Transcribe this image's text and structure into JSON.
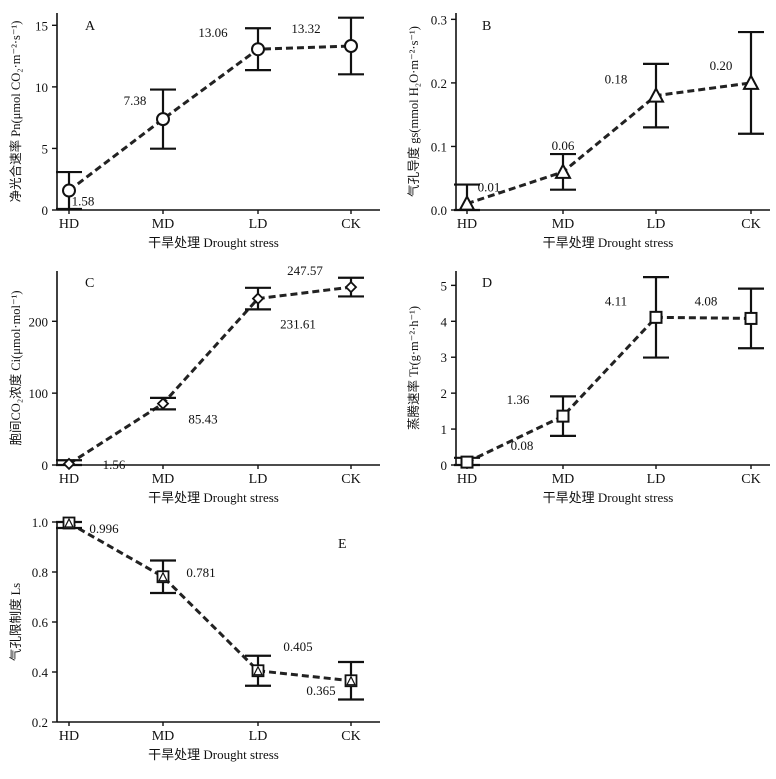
{
  "figure": {
    "xlabel": "干旱处理 Drought stress",
    "categories": [
      "HD",
      "MD",
      "LD",
      "CK"
    ]
  },
  "chart_data": [
    {
      "id": "A",
      "type": "line",
      "panel_label": "A",
      "ylabel": "净光合速率 Pn(μmol CO₂·m⁻²·s⁻¹)",
      "ylim": [
        0,
        16
      ],
      "yticks": [
        0,
        5,
        10,
        15
      ],
      "marker": "circle",
      "categories": [
        "HD",
        "MD",
        "LD",
        "CK"
      ],
      "values": [
        1.58,
        7.38,
        13.06,
        13.32
      ],
      "errors": [
        1.5,
        2.4,
        1.7,
        2.3
      ],
      "data_labels": [
        "1.58",
        "7.38",
        "13.06",
        "13.32"
      ]
    },
    {
      "id": "B",
      "type": "line",
      "panel_label": "B",
      "ylabel": "气孔导度 gs(mmol H₂O·m⁻²·s⁻¹)",
      "ylim": [
        0,
        0.31
      ],
      "yticks": [
        0.0,
        0.1,
        0.2,
        0.3
      ],
      "marker": "triangle",
      "categories": [
        "HD",
        "MD",
        "LD",
        "CK"
      ],
      "values": [
        0.01,
        0.06,
        0.18,
        0.2
      ],
      "errors": [
        0.03,
        0.028,
        0.05,
        0.08
      ],
      "data_labels": [
        "0.01",
        "0.06",
        "0.18",
        "0.20"
      ]
    },
    {
      "id": "C",
      "type": "line",
      "panel_label": "C",
      "ylabel": "胞间CO₂浓度 Ci(μmol·mol⁻¹)",
      "ylim": [
        0,
        270
      ],
      "yticks": [
        0,
        100,
        200
      ],
      "marker": "diamond",
      "categories": [
        "HD",
        "MD",
        "LD",
        "CK"
      ],
      "values": [
        1.56,
        85.43,
        231.61,
        247.57
      ],
      "errors": [
        5,
        8,
        15,
        13
      ],
      "data_labels": [
        "1.56",
        "85.43",
        "231.61",
        "247.57"
      ]
    },
    {
      "id": "D",
      "type": "line",
      "panel_label": "D",
      "ylabel": "蒸腾速率 Tr(g·m⁻²·h⁻¹)",
      "ylim": [
        0,
        5.4
      ],
      "yticks": [
        0,
        1,
        2,
        3,
        4,
        5
      ],
      "marker": "square",
      "categories": [
        "HD",
        "MD",
        "LD",
        "CK"
      ],
      "values": [
        0.08,
        1.36,
        4.11,
        4.08
      ],
      "errors": [
        0.12,
        0.55,
        1.12,
        0.83
      ],
      "data_labels": [
        "0.08",
        "1.36",
        "4.11",
        "4.08"
      ]
    },
    {
      "id": "E",
      "type": "line",
      "panel_label": "E",
      "ylabel": "气孔限制度 Ls",
      "ylim": [
        0.2,
        1.0
      ],
      "yticks": [
        0.2,
        0.4,
        0.6,
        0.8,
        1.0
      ],
      "marker": "square-triangle",
      "categories": [
        "HD",
        "MD",
        "LD",
        "CK"
      ],
      "values": [
        0.996,
        0.781,
        0.405,
        0.365
      ],
      "errors": [
        0.02,
        0.065,
        0.06,
        0.075
      ],
      "data_labels": [
        "0.996",
        "0.781",
        "0.405",
        "0.365"
      ]
    }
  ]
}
